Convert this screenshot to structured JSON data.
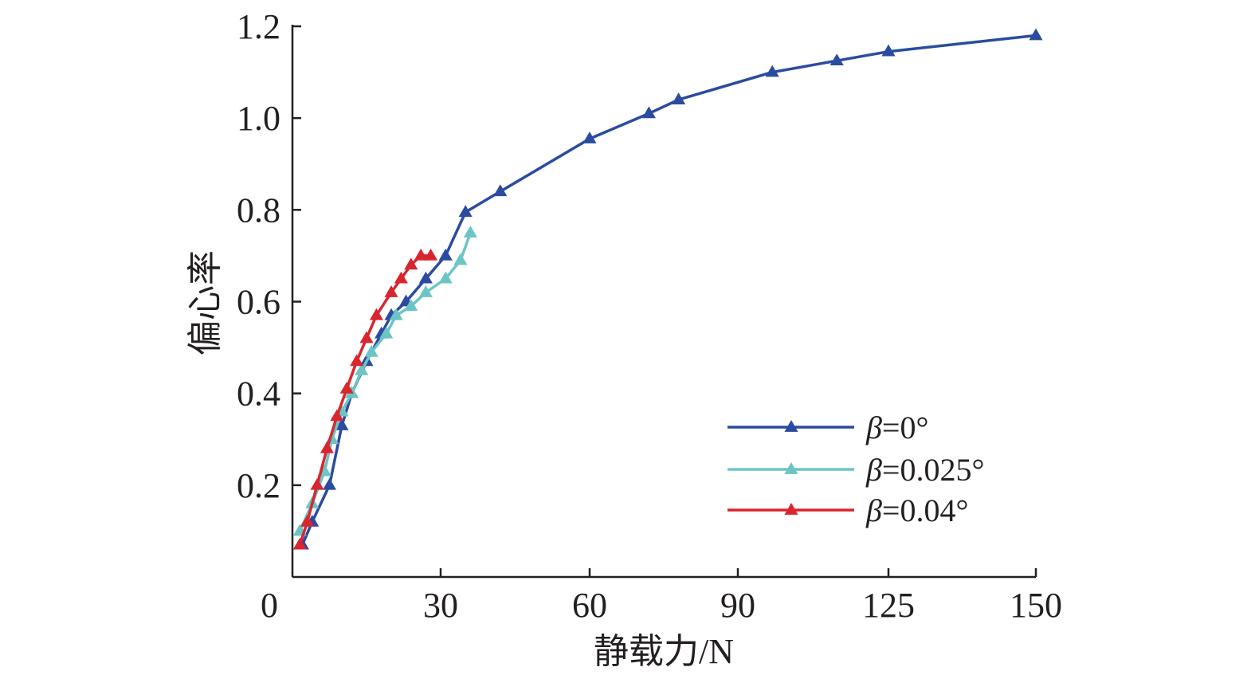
{
  "chart_data": {
    "type": "line",
    "title": "",
    "xlabel": "静载力/N",
    "ylabel": "偏心率",
    "x_ticks": [
      "0",
      "30",
      "60",
      "90",
      "125",
      "150"
    ],
    "y_ticks": [
      "0.2",
      "0.4",
      "0.6",
      "0.8",
      "1.0",
      "1.2"
    ],
    "xlim": [
      0,
      150
    ],
    "ylim": [
      0,
      1.2
    ],
    "grid": false,
    "legend_position": "bottom-right",
    "legend_prefix": "β",
    "series": [
      {
        "name": "=0°",
        "color": "#2b4ba0",
        "x": [
          2,
          4,
          7.5,
          10,
          12,
          15,
          18,
          20,
          23,
          27,
          31,
          35,
          42,
          60,
          72,
          78,
          98,
          113,
          125,
          150
        ],
        "y": [
          0.07,
          0.12,
          0.2,
          0.33,
          0.4,
          0.47,
          0.53,
          0.57,
          0.6,
          0.65,
          0.7,
          0.795,
          0.84,
          0.955,
          1.01,
          1.04,
          1.1,
          1.125,
          1.145,
          1.18
        ]
      },
      {
        "name": "=0.025°",
        "color": "#6cc5c5",
        "x": [
          1.5,
          4,
          6.5,
          8,
          10,
          12,
          14,
          16,
          19,
          21,
          24,
          27,
          31,
          34,
          36
        ],
        "y": [
          0.1,
          0.16,
          0.23,
          0.3,
          0.36,
          0.4,
          0.45,
          0.49,
          0.53,
          0.57,
          0.59,
          0.62,
          0.65,
          0.69,
          0.75
        ]
      },
      {
        "name": "=0.04°",
        "color": "#d9262e",
        "x": [
          1.5,
          3,
          5,
          7,
          9,
          11,
          13,
          15,
          17,
          20,
          22,
          24,
          26,
          28
        ],
        "y": [
          0.07,
          0.12,
          0.2,
          0.28,
          0.35,
          0.41,
          0.47,
          0.52,
          0.57,
          0.62,
          0.65,
          0.68,
          0.7,
          0.7
        ]
      }
    ]
  }
}
